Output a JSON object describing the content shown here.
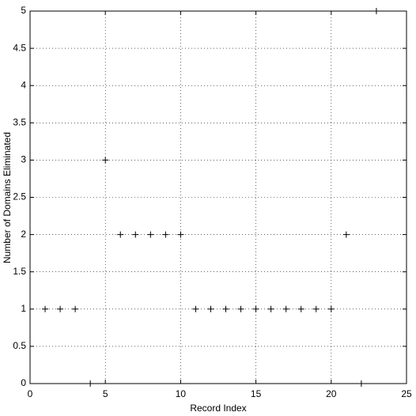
{
  "chart_data": {
    "type": "scatter",
    "xlabel": "Record Index",
    "ylabel": "Number of Domains Eliminated",
    "x": [
      1,
      2,
      3,
      4,
      5,
      6,
      7,
      8,
      9,
      10,
      11,
      12,
      13,
      14,
      15,
      16,
      17,
      18,
      19,
      20,
      21,
      22,
      23
    ],
    "values": [
      1,
      1,
      1,
      0,
      3,
      2,
      2,
      2,
      2,
      2,
      1,
      1,
      1,
      1,
      1,
      1,
      1,
      1,
      1,
      1,
      2,
      0,
      5
    ],
    "color": "#000000",
    "xlim": [
      0,
      25
    ],
    "xticks": [
      0,
      5,
      10,
      15,
      20,
      25
    ],
    "ylim": [
      0,
      5
    ],
    "yticks": [
      0,
      0.5,
      1,
      1.5,
      2,
      2.5,
      3,
      3.5,
      4,
      4.5,
      5
    ],
    "grid": true
  }
}
